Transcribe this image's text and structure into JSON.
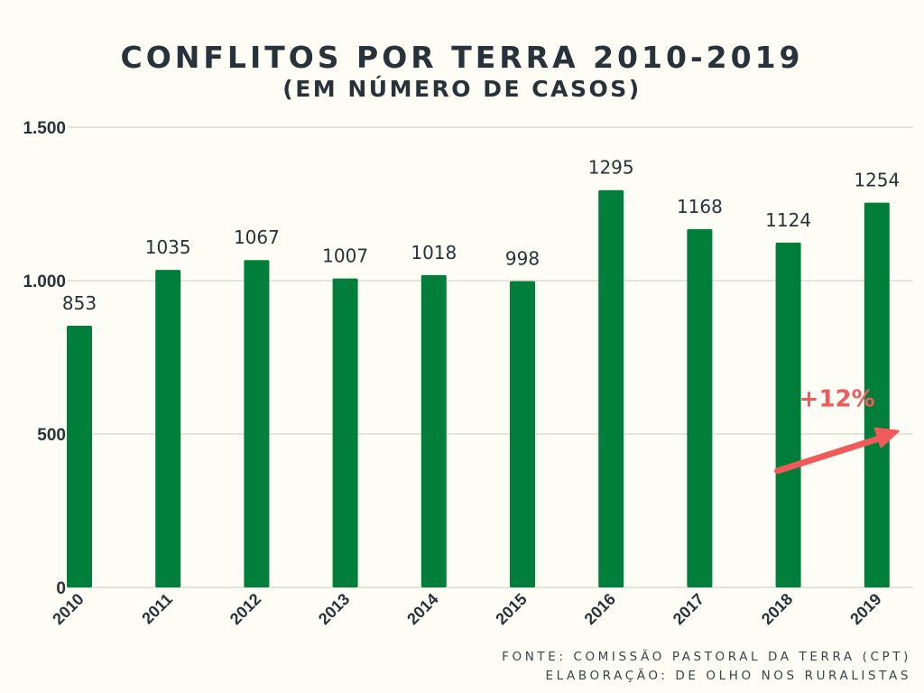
{
  "title": "CONFLITOS POR TERRA 2010-2019",
  "subtitle": "(EM NÚMERO DE CASOS)",
  "source_lines": [
    "FONTE: COMISSÃO PASTORAL DA TERRA (CPT)",
    "ELABORAÇÃO: DE OLHO NOS RURALISTAS"
  ],
  "colors": {
    "bar": "#017f3a",
    "annotation": "#f05a5a",
    "grid": "#d6d6cc",
    "text": "#27323a"
  },
  "chart_data": {
    "type": "bar",
    "title": "CONFLITOS POR TERRA 2010-2019",
    "subtitle": "(EM NÚMERO DE CASOS)",
    "xlabel": "",
    "ylabel": "",
    "categories": [
      "2010",
      "2011",
      "2012",
      "2013",
      "2014",
      "2015",
      "2016",
      "2017",
      "2018",
      "2019"
    ],
    "values": [
      853,
      1035,
      1067,
      1007,
      1018,
      998,
      1295,
      1168,
      1124,
      1254
    ],
    "data_labels": [
      "853",
      "1035",
      "1067",
      "1007",
      "1018",
      "998",
      "1295",
      "1168",
      "1124",
      "1254"
    ],
    "ylim": [
      0,
      1500
    ],
    "yticks": [
      0,
      500,
      1000,
      1500
    ],
    "ytick_labels": [
      "0",
      "500",
      "1.000",
      "1.500"
    ],
    "grid": true,
    "legend": "none",
    "annotations": [
      {
        "text": "+12%",
        "type": "arrow",
        "from_category": "2018",
        "to_category": "2019",
        "description": "increase from 2018 to 2019"
      }
    ]
  }
}
